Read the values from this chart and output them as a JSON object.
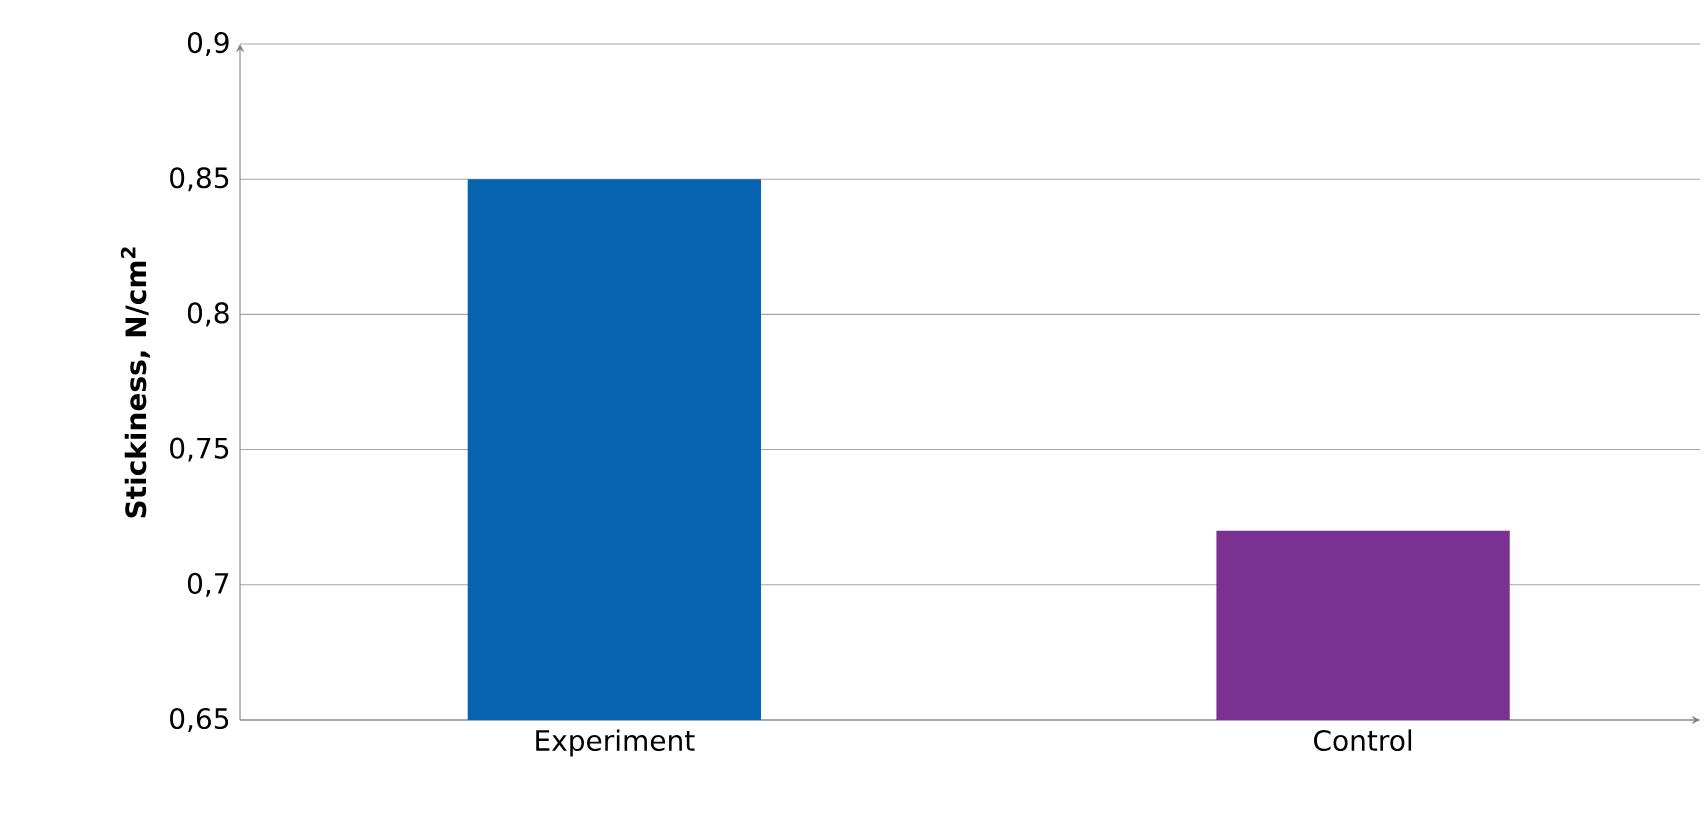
{
  "chart_data": {
    "type": "bar",
    "ylabel": "**Stickiness, N/cm$^{2}$**",
    "categories": [
      "Experiment",
      "Control"
    ],
    "values": [
      0.85,
      0.72
    ],
    "colors": [
      "#0563b0",
      "#7a3192"
    ],
    "ylim": [
      0.65,
      0.9
    ],
    "yticks": [
      {
        "value": 0.65,
        "label": "0,65"
      },
      {
        "value": 0.7,
        "label": "0,7"
      },
      {
        "value": 0.75,
        "label": "0,75"
      },
      {
        "value": 0.8,
        "label": "0,8"
      },
      {
        "value": 0.85,
        "label": "0,85"
      },
      {
        "value": 0.9,
        "label": "0,9"
      }
    ],
    "grid": "y"
  }
}
